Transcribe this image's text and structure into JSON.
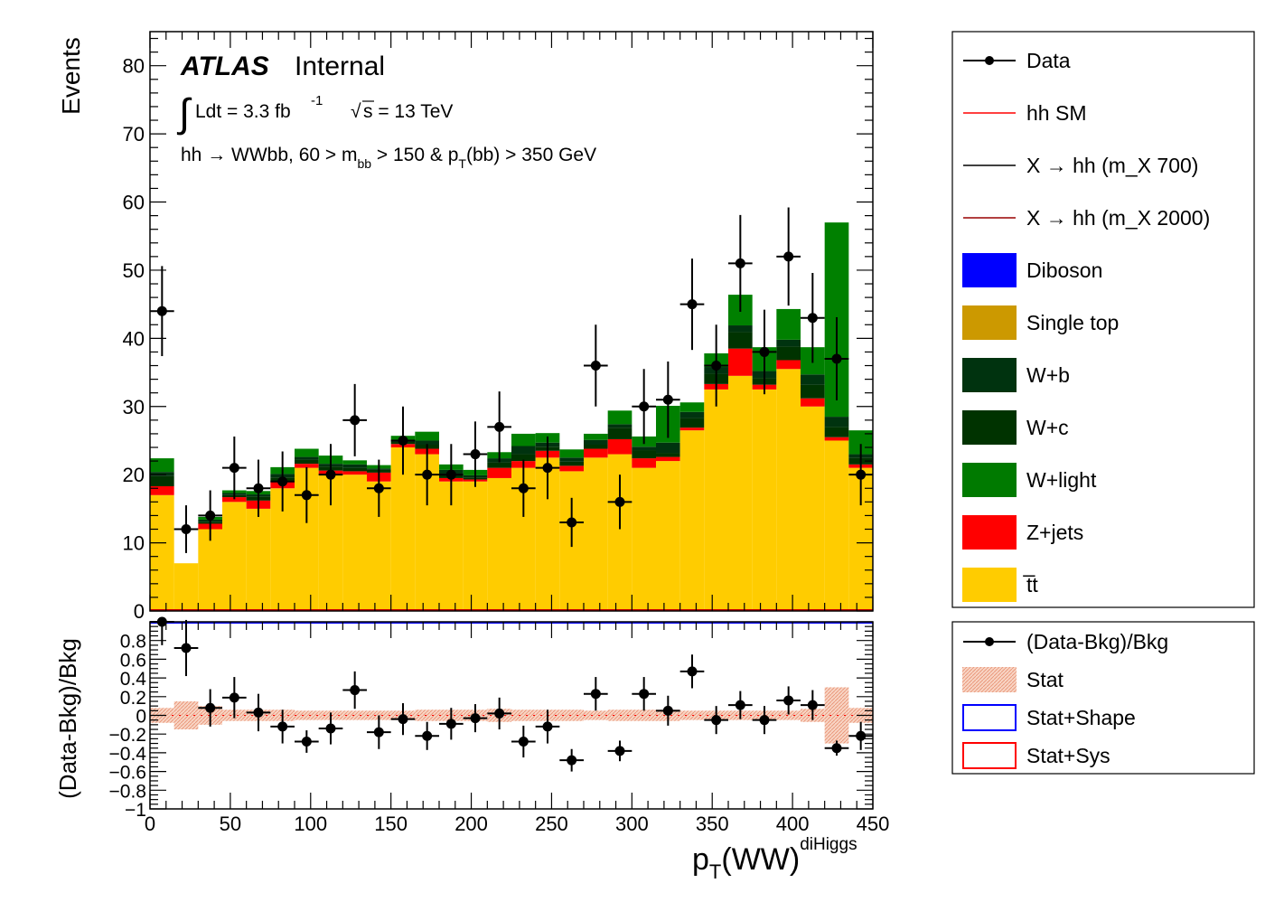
{
  "chart_data": [
    {
      "type": "bar",
      "stacked": true,
      "panel": "main",
      "ylabel": "Events",
      "ylim": [
        0,
        85
      ],
      "x_bins": {
        "start": 0,
        "width": 15,
        "count": 30
      },
      "annotations": {
        "experiment": "ATLAS",
        "status": "Internal",
        "lumi_prefix": "Ldt = 3.3 fb",
        "lumi_exp": "-1",
        "sqrt_s": "s = 13 TeV",
        "selection_a": "hh →  WWbb, 60 > m",
        "selection_sub1": "bb",
        "selection_b": " > 150 & p",
        "selection_sub2": "T",
        "selection_c": "(bb) > 350 GeV"
      },
      "yticks": [
        0,
        10,
        20,
        30,
        40,
        50,
        60,
        70,
        80
      ],
      "series": [
        {
          "name": "t̅t",
          "color": "#ffcc00",
          "values": [
            17,
            7,
            12,
            16,
            15,
            18,
            21,
            20,
            20,
            19,
            24,
            23,
            19,
            19,
            19.5,
            21,
            22.5,
            20.5,
            22.5,
            23,
            21,
            22,
            26.5,
            32.5,
            34.5,
            32.5,
            35.5,
            30,
            25,
            21
          ]
        },
        {
          "name": "Z+jets",
          "color": "#ff0000",
          "values": [
            1.3,
            0,
            0.8,
            0.7,
            1.2,
            1,
            0.6,
            0.6,
            0.5,
            1.3,
            0.5,
            0.8,
            0.5,
            0.3,
            1.5,
            1,
            1,
            0.8,
            1.3,
            2.2,
            1.4,
            0.6,
            0.4,
            0.8,
            4,
            0.7,
            1.3,
            1.2,
            0.5,
            0.5
          ]
        },
        {
          "name": "W+c",
          "color": "#003300",
          "values": [
            1.5,
            0,
            0.3,
            0.3,
            0.6,
            0.6,
            0.6,
            0.6,
            0.5,
            0.4,
            0.3,
            0.6,
            0.6,
            0.3,
            0.8,
            1,
            0.6,
            0.6,
            0.6,
            1.7,
            1.2,
            0.6,
            1.4,
            1.5,
            2.4,
            1,
            2,
            2,
            1.5,
            1
          ]
        },
        {
          "name": "W+b",
          "color": "#00330f",
          "values": [
            0.6,
            0,
            0.3,
            0.3,
            0.3,
            0.5,
            0.4,
            0.4,
            0.5,
            0.2,
            0.3,
            0.6,
            0.6,
            0.3,
            0.6,
            1.2,
            0.6,
            0.6,
            0.7,
            0.5,
            0.5,
            1.5,
            0.9,
            1,
            1,
            1,
            1,
            1.5,
            1.5,
            0.5
          ]
        },
        {
          "name": "W+light",
          "color": "#008000",
          "values": [
            2,
            0,
            0.4,
            0.4,
            0.5,
            1,
            1.2,
            1.2,
            0.6,
            0.5,
            0.6,
            1.3,
            0.8,
            0.8,
            0.9,
            1.8,
            1.4,
            1.2,
            0.9,
            2,
            1.5,
            5.4,
            1.4,
            2,
            4.5,
            3.5,
            4.5,
            4,
            28.5,
            3.5
          ]
        },
        {
          "name": "Diboson",
          "color": "#0000ff",
          "values": [
            0,
            0,
            0,
            0,
            0,
            0,
            0,
            0,
            0,
            0,
            0,
            0,
            0,
            0,
            0,
            0,
            0,
            0,
            0,
            0,
            0,
            0,
            0,
            0,
            0,
            0,
            0,
            0,
            0,
            0
          ]
        },
        {
          "name": "Single top",
          "color": "#cc9900",
          "values": [
            0,
            0,
            0,
            0,
            0,
            0,
            0,
            0,
            0,
            0,
            0,
            0,
            0,
            0,
            0,
            0,
            0,
            0,
            0,
            0,
            0,
            0,
            0,
            0,
            0,
            0,
            0,
            0,
            0,
            0
          ]
        }
      ],
      "data_points": {
        "name": "Data",
        "values": [
          44,
          12,
          14,
          21,
          18,
          19,
          17,
          20,
          28,
          18,
          25,
          20,
          20,
          23,
          27,
          18,
          21,
          13,
          36,
          16,
          30,
          31,
          45,
          36,
          51,
          38,
          52,
          43,
          37,
          20
        ],
        "errors": [
          6.6,
          3.5,
          3.7,
          4.6,
          4.2,
          4.4,
          4.1,
          4.5,
          5.3,
          4.2,
          5,
          4.5,
          4.5,
          4.8,
          5.2,
          4.2,
          4.6,
          3.6,
          6,
          4,
          5.5,
          5.6,
          6.7,
          6,
          7.1,
          6.2,
          7.2,
          6.6,
          6.1,
          4.5
        ]
      }
    },
    {
      "type": "scatter",
      "panel": "ratio",
      "xlabel": "p",
      "xlabel_sub": "T",
      "xlabel_rest": "(WW)",
      "xlabel_sup": "diHiggs",
      "ylabel": "(Data-Bkg)/Bkg",
      "xlim": [
        0,
        450
      ],
      "ylim": [
        -1,
        1
      ],
      "xticks": [
        0,
        50,
        100,
        150,
        200,
        250,
        300,
        350,
        400,
        450
      ],
      "yticks": [
        "0.8",
        "0.6",
        "0.4",
        "0.2",
        "0",
        "−0.2",
        "−0.4",
        "−0.6",
        "−0.8",
        "−1"
      ],
      "yticks_values": [
        0.8,
        0.6,
        0.4,
        0.2,
        0,
        -0.2,
        -0.4,
        -0.6,
        -0.8,
        -1
      ],
      "values": [
        1.0,
        0.72,
        0.08,
        0.19,
        0.03,
        -0.12,
        -0.28,
        -0.14,
        0.27,
        -0.18,
        -0.04,
        -0.22,
        -0.09,
        -0.03,
        0.02,
        -0.28,
        -0.12,
        -0.48,
        0.23,
        -0.38,
        0.23,
        0.05,
        0.47,
        -0.05,
        0.11,
        -0.05,
        0.16,
        0.11,
        -0.35,
        -0.22
      ],
      "errors": [
        0.25,
        0.3,
        0.2,
        0.22,
        0.2,
        0.18,
        0.12,
        0.17,
        0.2,
        0.18,
        0.17,
        0.15,
        0.17,
        0.15,
        0.17,
        0.17,
        0.18,
        0.12,
        0.18,
        0.11,
        0.18,
        0.16,
        0.18,
        0.15,
        0.15,
        0.15,
        0.15,
        0.16,
        0.08,
        0.15
      ],
      "stat_band_halfwidth": [
        0.08,
        0.15,
        0.1,
        0.06,
        0.06,
        0.06,
        0.05,
        0.05,
        0.05,
        0.05,
        0.05,
        0.06,
        0.06,
        0.06,
        0.07,
        0.06,
        0.06,
        0.06,
        0.05,
        0.06,
        0.06,
        0.06,
        0.05,
        0.05,
        0.05,
        0.05,
        0.05,
        0.07,
        0.3,
        0.08
      ]
    }
  ],
  "legend_main": [
    {
      "label": "Data",
      "kind": "marker",
      "color": "#000000"
    },
    {
      "label": "hh SM",
      "kind": "line",
      "color": "#ff0000"
    },
    {
      "label": "X → hh (m_X 700)",
      "kind": "line",
      "color": "#000000"
    },
    {
      "label": "X → hh (m_X 2000)",
      "kind": "line",
      "color": "#990000"
    },
    {
      "label": "Diboson",
      "kind": "box",
      "color": "#0000ff"
    },
    {
      "label": "Single top",
      "kind": "box",
      "color": "#cc9900"
    },
    {
      "label": "W+b",
      "kind": "box",
      "color": "#00330f"
    },
    {
      "label": "W+c",
      "kind": "box",
      "color": "#003300"
    },
    {
      "label": "W+light",
      "kind": "box",
      "color": "#007a00"
    },
    {
      "label": "Z+jets",
      "kind": "box",
      "color": "#ff0000"
    },
    {
      "label": "t̅t",
      "kind": "box",
      "color": "#ffcc00"
    }
  ],
  "legend_ratio": [
    {
      "label": "(Data-Bkg)/Bkg",
      "kind": "marker",
      "color": "#000000"
    },
    {
      "label": "Stat",
      "kind": "hatch",
      "color": "#f4b8a0"
    },
    {
      "label": "Stat+Shape",
      "kind": "outline",
      "color": "#0000ff"
    },
    {
      "label": "Stat+Sys",
      "kind": "outline",
      "color": "#ff0000"
    }
  ]
}
